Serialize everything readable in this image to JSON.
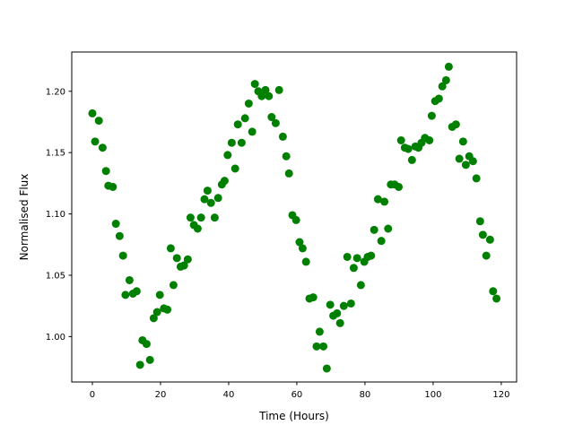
{
  "chart_data": {
    "type": "scatter",
    "title": "",
    "xlabel": "Time (Hours)",
    "ylabel": "Normalised Flux",
    "xlim": [
      -6.05,
      124.5
    ],
    "ylim": [
      0.963,
      1.232
    ],
    "xticks": [
      0,
      20,
      40,
      60,
      80,
      100,
      120
    ],
    "xtick_labels": [
      "0",
      "20",
      "40",
      "60",
      "80",
      "100",
      "120"
    ],
    "yticks": [
      1.0,
      1.05,
      1.1,
      1.15,
      1.2
    ],
    "ytick_labels": [
      "1.00",
      "1.05",
      "1.10",
      "1.15",
      "1.20"
    ],
    "grid": false,
    "color": "#008000",
    "x": [
      0,
      0.8,
      1.9,
      3,
      4,
      4.7,
      6,
      6.9,
      8,
      9,
      9.7,
      10.9,
      11.9,
      13,
      14,
      14.7,
      15.9,
      16.9,
      18,
      19,
      19.8,
      21,
      22,
      23,
      23.8,
      24.8,
      25.9,
      26.9,
      28,
      28.8,
      29.8,
      30.9,
      31.9,
      32.9,
      33.8,
      34.8,
      35.9,
      36.9,
      38,
      38.8,
      39.7,
      40.9,
      41.9,
      42.7,
      43.8,
      44.8,
      45.9,
      46.9,
      47.7,
      48.7,
      49.7,
      50.8,
      51.8,
      52.6,
      53.8,
      54.8,
      55.9,
      56.9,
      57.7,
      58.7,
      59.8,
      60.8,
      61.7,
      62.7,
      63.7,
      64.8,
      65.8,
      66.7,
      67.8,
      68.8,
      69.8,
      70.7,
      71.8,
      72.7,
      73.8,
      74.8,
      75.9,
      76.7,
      77.7,
      78.8,
      79.8,
      80.8,
      81.8,
      82.7,
      83.8,
      84.8,
      85.7,
      86.8,
      87.6,
      88.7,
      89.9,
      90.6,
      91.7,
      92.7,
      93.8,
      94.8,
      95.7,
      96.6,
      97.6,
      98.9,
      99.6,
      100.6,
      101.7,
      102.7,
      103.8,
      104.6,
      105.6,
      106.7,
      107.7,
      108.8,
      109.6,
      110.6,
      111.7,
      112.7,
      113.8,
      114.6,
      115.6,
      116.7,
      117.6,
      118.6
    ],
    "y": [
      1.182,
      1.159,
      1.176,
      1.154,
      1.135,
      1.123,
      1.122,
      1.092,
      1.082,
      1.066,
      1.034,
      1.046,
      1.035,
      1.037,
      0.977,
      0.997,
      0.994,
      0.981,
      1.015,
      1.02,
      1.034,
      1.023,
      1.022,
      1.072,
      1.042,
      1.064,
      1.057,
      1.058,
      1.063,
      1.097,
      1.091,
      1.088,
      1.097,
      1.112,
      1.119,
      1.109,
      1.097,
      1.113,
      1.124,
      1.127,
      1.148,
      1.158,
      1.137,
      1.173,
      1.158,
      1.178,
      1.19,
      1.167,
      1.206,
      1.2,
      1.196,
      1.201,
      1.196,
      1.179,
      1.174,
      1.201,
      1.163,
      1.147,
      1.133,
      1.099,
      1.095,
      1.077,
      1.072,
      1.061,
      1.031,
      1.032,
      0.992,
      1.004,
      0.992,
      0.974,
      1.026,
      1.017,
      1.019,
      1.011,
      1.025,
      1.065,
      1.027,
      1.056,
      1.064,
      1.042,
      1.061,
      1.065,
      1.066,
      1.087,
      1.112,
      1.078,
      1.11,
      1.088,
      1.124,
      1.124,
      1.122,
      1.16,
      1.154,
      1.153,
      1.144,
      1.155,
      1.154,
      1.158,
      1.162,
      1.16,
      1.18,
      1.192,
      1.194,
      1.204,
      1.209,
      1.22,
      1.171,
      1.173,
      1.145,
      1.159,
      1.14,
      1.147,
      1.143,
      1.129,
      1.094,
      1.083,
      1.066,
      1.079,
      1.037,
      1.031
    ]
  }
}
